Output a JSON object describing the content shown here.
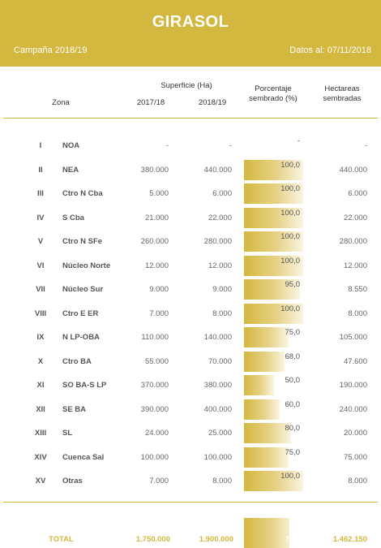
{
  "header": {
    "title": "GIRASOL",
    "campaign": "Campaña 2018/19",
    "date": "Datos al: 07/11/2018"
  },
  "columns": {
    "zona": "Zona",
    "superficie": "Superficie (Ha)",
    "y1": "2017/18",
    "y2": "2018/19",
    "porcentaje_line1": "Porcentaje",
    "porcentaje_line2": "sembrado (%)",
    "hectareas_line1": "Hectareas",
    "hectareas_line2": "sembradas"
  },
  "rows": [
    {
      "roman": "I",
      "zona": "NOA",
      "s1718": "-",
      "s1819": "-",
      "pct": "-",
      "pct_value": 0,
      "hect": "-"
    },
    {
      "roman": "II",
      "zona": "NEA",
      "s1718": "380.000",
      "s1819": "440.000",
      "pct": "100,0",
      "pct_value": 100,
      "hect": "440.000"
    },
    {
      "roman": "III",
      "zona": "Ctro N Cba",
      "s1718": "5.000",
      "s1819": "6.000",
      "pct": "100,0",
      "pct_value": 100,
      "hect": "6.000"
    },
    {
      "roman": "IV",
      "zona": "S Cba",
      "s1718": "21.000",
      "s1819": "22.000",
      "pct": "100,0",
      "pct_value": 100,
      "hect": "22.000"
    },
    {
      "roman": "V",
      "zona": "Ctro N SFe",
      "s1718": "260.000",
      "s1819": "280.000",
      "pct": "100,0",
      "pct_value": 100,
      "hect": "280.000"
    },
    {
      "roman": "VI",
      "zona": "Núcleo Norte",
      "s1718": "12.000",
      "s1819": "12.000",
      "pct": "100,0",
      "pct_value": 100,
      "hect": "12.000"
    },
    {
      "roman": "VII",
      "zona": "Núcleo Sur",
      "s1718": "9.000",
      "s1819": "9.000",
      "pct": "95,0",
      "pct_value": 95,
      "hect": "8.550"
    },
    {
      "roman": "VIII",
      "zona": "Ctro E ER",
      "s1718": "7.000",
      "s1819": "8.000",
      "pct": "100,0",
      "pct_value": 100,
      "hect": "8.000"
    },
    {
      "roman": "IX",
      "zona": "N LP-OBA",
      "s1718": "110.000",
      "s1819": "140.000",
      "pct": "75,0",
      "pct_value": 75,
      "hect": "105.000"
    },
    {
      "roman": "X",
      "zona": "Ctro BA",
      "s1718": "55.000",
      "s1819": "70.000",
      "pct": "68,0",
      "pct_value": 68,
      "hect": "47.600"
    },
    {
      "roman": "XI",
      "zona": "SO BA-S LP",
      "s1718": "370.000",
      "s1819": "380.000",
      "pct": "50,0",
      "pct_value": 50,
      "hect": "190.000"
    },
    {
      "roman": "XII",
      "zona": "SE BA",
      "s1718": "390.000",
      "s1819": "400.000",
      "pct": "60,0",
      "pct_value": 60,
      "hect": "240.000"
    },
    {
      "roman": "XIII",
      "zona": "SL",
      "s1718": "24.000",
      "s1819": "25.000",
      "pct": "80,0",
      "pct_value": 80,
      "hect": "20.000"
    },
    {
      "roman": "XIV",
      "zona": "Cuenca Sal",
      "s1718": "100.000",
      "s1819": "100.000",
      "pct": "75,0",
      "pct_value": 75,
      "hect": "75.000"
    },
    {
      "roman": "XV",
      "zona": "Otras",
      "s1718": "7.000",
      "s1819": "8.000",
      "pct": "100,0",
      "pct_value": 100,
      "hect": "8.000"
    }
  ],
  "total": {
    "label": "TOTAL",
    "s1718": "1.750.000",
    "s1819": "1.900.000",
    "pct": "77,0",
    "pct_value": 77,
    "hect": "1.462.150"
  },
  "colors": {
    "accent": "#d4b73e"
  }
}
